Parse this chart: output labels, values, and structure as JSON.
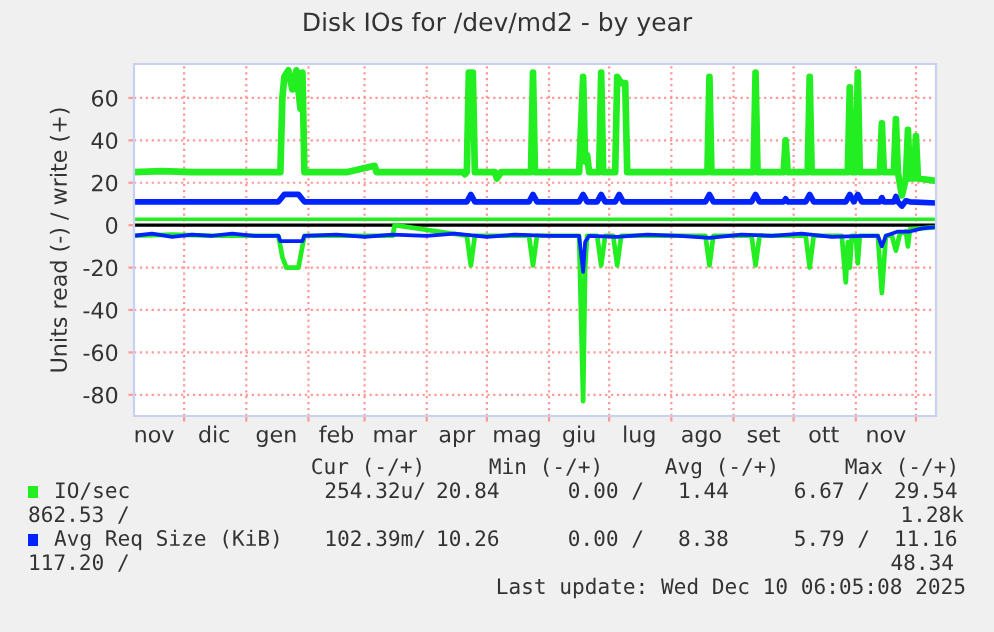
{
  "chart_data": {
    "type": "line",
    "title": "Disk IOs for /dev/md2 - by year",
    "ylabel": "Units read (-) / write (+)",
    "xlim": [
      "2024-11-06",
      "2025-12-11"
    ],
    "ylim": [
      -90,
      76
    ],
    "yticks": [
      -80,
      -60,
      -40,
      -20,
      0,
      20,
      40,
      60
    ],
    "xticks": [
      {
        "value": "2024-12-01",
        "label": null
      },
      {
        "value": "2025-01-01",
        "label": null
      },
      {
        "value": "2025-02-01",
        "label": null
      },
      {
        "value": "2025-03-01",
        "label": null
      },
      {
        "value": "2025-04-01",
        "label": null
      },
      {
        "value": "2025-05-01",
        "label": null
      },
      {
        "value": "2025-06-01",
        "label": null
      },
      {
        "value": "2025-07-01",
        "label": null
      },
      {
        "value": "2025-08-01",
        "label": null
      },
      {
        "value": "2025-09-01",
        "label": null
      },
      {
        "value": "2025-10-01",
        "label": null
      },
      {
        "value": "2025-11-01",
        "label": null
      },
      {
        "value": "2025-12-01",
        "label": null
      },
      {
        "value": "2024-11-16",
        "label": "nov"
      },
      {
        "value": "2024-12-16",
        "label": "dic"
      },
      {
        "value": "2025-01-16",
        "label": "gen"
      },
      {
        "value": "2025-02-15",
        "label": "feb"
      },
      {
        "value": "2025-03-16",
        "label": "mar"
      },
      {
        "value": "2025-04-16",
        "label": "apr"
      },
      {
        "value": "2025-05-16",
        "label": "mag"
      },
      {
        "value": "2025-06-16",
        "label": "giu"
      },
      {
        "value": "2025-07-16",
        "label": "lug"
      },
      {
        "value": "2025-08-16",
        "label": "ago"
      },
      {
        "value": "2025-09-16",
        "label": "set"
      },
      {
        "value": "2025-10-16",
        "label": "ott"
      },
      {
        "value": "2025-11-16",
        "label": "nov"
      }
    ],
    "grid": true,
    "legend": "bottom",
    "ref_lines": [
      {
        "axis": "y",
        "value": 0,
        "color": "#000000"
      },
      {
        "axis": "y",
        "value": 2.8,
        "color": "#22ee22"
      }
    ],
    "series": [
      {
        "name": "IO/sec",
        "color": "#22ee22",
        "x": [
          "2024-11-06",
          "2024-11-20",
          "2024-12-05",
          "2024-12-25",
          "2025-01-18",
          "2025-01-19",
          "2025-01-20",
          "2025-01-22",
          "2025-01-24",
          "2025-01-26",
          "2025-01-28",
          "2025-01-29",
          "2025-01-30",
          "2025-02-20",
          "2025-03-06",
          "2025-03-07",
          "2025-04-19",
          "2025-04-20",
          "2025-04-21",
          "2025-04-22",
          "2025-04-24",
          "2025-04-25",
          "2025-05-05",
          "2025-05-06",
          "2025-05-08",
          "2025-05-23",
          "2025-05-24",
          "2025-05-25",
          "2025-06-16",
          "2025-06-18",
          "2025-06-19",
          "2025-06-20",
          "2025-06-21",
          "2025-06-26",
          "2025-06-27",
          "2025-06-28",
          "2025-07-04",
          "2025-07-05",
          "2025-07-07",
          "2025-07-09",
          "2025-07-10",
          "2025-08-19",
          "2025-08-20",
          "2025-08-21",
          "2025-09-11",
          "2025-09-12",
          "2025-09-13",
          "2025-09-26",
          "2025-09-27",
          "2025-09-28",
          "2025-10-08",
          "2025-10-09",
          "2025-10-10",
          "2025-10-28",
          "2025-10-29",
          "2025-10-30",
          "2025-11-01",
          "2025-11-02",
          "2025-11-03",
          "2025-11-13",
          "2025-11-14",
          "2025-11-15",
          "2025-11-20",
          "2025-11-21",
          "2025-11-22",
          "2025-11-24",
          "2025-11-26",
          "2025-11-27",
          "2025-11-28",
          "2025-11-30",
          "2025-12-01",
          "2025-12-02",
          "2025-12-10"
        ],
        "values": [
          25,
          25.5,
          25,
          25,
          25,
          60,
          70,
          73,
          64,
          73,
          55,
          72,
          25,
          25,
          28,
          25,
          25,
          24,
          25,
          72,
          72,
          25,
          25,
          22,
          25,
          25,
          72,
          25,
          25,
          70,
          30,
          33,
          25,
          25,
          72,
          25,
          25,
          70,
          67,
          67,
          25,
          25,
          70,
          25,
          25,
          72,
          25,
          25,
          40,
          25,
          25,
          70,
          25,
          25,
          65,
          25,
          25,
          72,
          25,
          25,
          48,
          25,
          25,
          50,
          25,
          14,
          22,
          45,
          22,
          22,
          42,
          22,
          21
        ]
      },
      {
        "name": "Avg Req Size (KiB)",
        "color": "#0022ff",
        "x": [
          "2024-11-06",
          "2025-01-17",
          "2025-01-20",
          "2025-01-27",
          "2025-01-30",
          "2025-04-21",
          "2025-04-23",
          "2025-04-25",
          "2025-05-22",
          "2025-05-24",
          "2025-05-26",
          "2025-06-16",
          "2025-06-18",
          "2025-06-20",
          "2025-06-25",
          "2025-06-27",
          "2025-06-29",
          "2025-07-04",
          "2025-07-06",
          "2025-07-08",
          "2025-08-18",
          "2025-08-20",
          "2025-08-22",
          "2025-09-10",
          "2025-09-12",
          "2025-09-14",
          "2025-09-26",
          "2025-09-27",
          "2025-09-28",
          "2025-10-07",
          "2025-10-09",
          "2025-10-11",
          "2025-10-27",
          "2025-10-29",
          "2025-10-31",
          "2025-11-02",
          "2025-11-04",
          "2025-11-13",
          "2025-11-14",
          "2025-11-15",
          "2025-11-20",
          "2025-11-21",
          "2025-11-22",
          "2025-11-24",
          "2025-11-26",
          "2025-11-28",
          "2025-12-10"
        ],
        "values": [
          11,
          11,
          14.5,
          14.5,
          11,
          11,
          14.5,
          11,
          11,
          14.5,
          11,
          11,
          14.5,
          11,
          11,
          14.5,
          11,
          11,
          14.5,
          11,
          11,
          14.5,
          11,
          11,
          14.5,
          11,
          11,
          12.5,
          11,
          11,
          14.5,
          11,
          11,
          14.5,
          11,
          14.5,
          11,
          11,
          13,
          11,
          11,
          13.5,
          11,
          9,
          11.5,
          11,
          10.5
        ]
      },
      {
        "color": "#22ee22",
        "x": [
          "2024-11-06",
          "2024-11-25",
          "2024-12-15",
          "2025-01-17",
          "2025-01-19",
          "2025-01-21",
          "2025-01-27",
          "2025-01-30",
          "2025-02-15",
          "2025-03-15",
          "2025-03-16",
          "2025-04-21",
          "2025-04-23",
          "2025-04-25",
          "2025-05-22",
          "2025-05-24",
          "2025-05-26",
          "2025-06-16",
          "2025-06-18",
          "2025-06-19",
          "2025-06-20",
          "2025-06-25",
          "2025-06-27",
          "2025-06-29",
          "2025-07-03",
          "2025-07-05",
          "2025-07-07",
          "2025-08-18",
          "2025-08-20",
          "2025-08-22",
          "2025-09-10",
          "2025-09-12",
          "2025-09-14",
          "2025-10-07",
          "2025-10-09",
          "2025-10-11",
          "2025-10-25",
          "2025-10-27",
          "2025-10-28",
          "2025-10-29",
          "2025-10-30",
          "2025-11-01",
          "2025-11-02",
          "2025-11-03",
          "2025-11-12",
          "2025-11-14",
          "2025-11-16",
          "2025-11-19",
          "2025-11-21",
          "2025-11-23",
          "2025-11-26",
          "2025-11-27",
          "2025-11-28",
          "2025-12-10"
        ],
        "values": [
          -5,
          -4.5,
          -5,
          -5,
          -15,
          -20,
          -20,
          -5,
          -5,
          -5,
          0,
          -5,
          -19,
          -5,
          -5,
          -19,
          -5,
          -5,
          -83,
          -20,
          -5,
          -5,
          -19,
          -5,
          -5,
          -19,
          -5,
          -5,
          -19,
          -5,
          -5,
          -19,
          -5,
          -5,
          -20,
          -5,
          -5,
          -27,
          -8,
          -20,
          -5,
          -5,
          -18,
          -5,
          -5,
          -32,
          -5,
          -5,
          -12,
          -4,
          -3,
          -10,
          -2,
          -1
        ]
      },
      {
        "color": "#0022ff",
        "x": [
          "2024-11-06",
          "2024-11-15",
          "2024-11-25",
          "2024-12-05",
          "2024-12-15",
          "2024-12-25",
          "2025-01-05",
          "2025-01-17",
          "2025-01-18",
          "2025-01-29",
          "2025-01-30",
          "2025-02-15",
          "2025-03-01",
          "2025-03-15",
          "2025-04-01",
          "2025-04-15",
          "2025-05-01",
          "2025-05-15",
          "2025-06-01",
          "2025-06-16",
          "2025-06-18",
          "2025-06-19",
          "2025-06-21",
          "2025-07-05",
          "2025-07-20",
          "2025-08-05",
          "2025-08-20",
          "2025-09-05",
          "2025-09-20",
          "2025-10-05",
          "2025-10-20",
          "2025-11-05",
          "2025-11-12",
          "2025-11-14",
          "2025-11-16",
          "2025-11-22",
          "2025-11-28",
          "2025-12-04",
          "2025-12-10"
        ],
        "values": [
          -5,
          -4,
          -5.5,
          -4.5,
          -5,
          -4,
          -5,
          -5,
          -7.5,
          -7.5,
          -5,
          -4.5,
          -5.5,
          -4.5,
          -5,
          -4,
          -5.5,
          -4.5,
          -5,
          -5,
          -22,
          -8,
          -5,
          -5.5,
          -4.5,
          -5,
          -6,
          -4.5,
          -5,
          -4,
          -5.5,
          -5,
          -5,
          -10,
          -5,
          -3,
          -3,
          -1.5,
          -1
        ]
      }
    ],
    "annotations": [
      "Cur (-/+)",
      "Min (-/+)",
      "Avg (-/+)",
      "Max (-/+)",
      "254.32u/",
      "20.84",
      "0.00 /",
      "1.44",
      "6.67 /",
      "29.54",
      "862.53 /",
      "1.28k",
      "102.39m/",
      "10.26",
      "0.00 /",
      "8.38",
      "5.79 /",
      "11.16",
      "117.20 /",
      "48.34",
      "Last update: Wed Dec 10 06:05:08 2025"
    ]
  }
}
